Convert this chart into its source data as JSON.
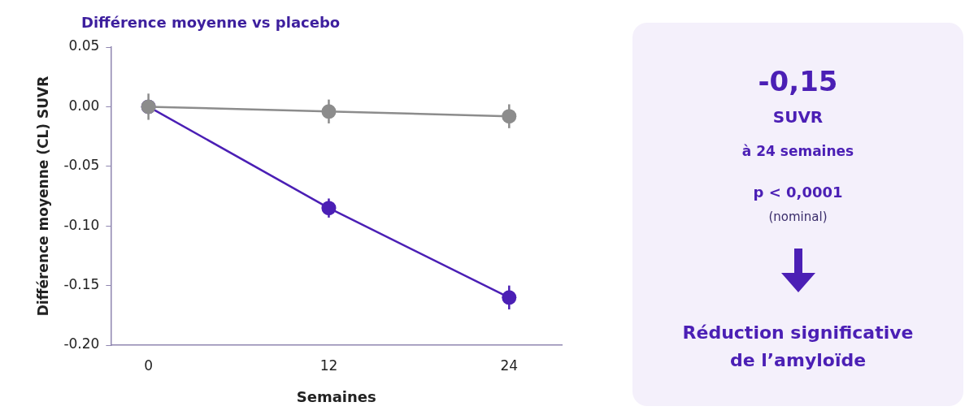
{
  "chart_data": {
    "type": "line",
    "title": "Différence moyenne vs placebo",
    "xlabel": "Semaines",
    "ylabel": "Différence moyenne (CL) SUVR",
    "x": [
      0,
      12,
      24
    ],
    "xlim": [
      -2.5,
      27.5
    ],
    "xticks": [
      0,
      12,
      24
    ],
    "ylim": [
      -0.2,
      0.05
    ],
    "yticks": [
      {
        "value": 0.05,
        "label": "0.05"
      },
      {
        "value": 0,
        "label": "0.00"
      },
      {
        "value": -0.05,
        "label": "-0.05"
      },
      {
        "value": -0.1,
        "label": "-0.10"
      },
      {
        "value": -0.15,
        "label": "-0.15"
      },
      {
        "value": -0.2,
        "label": "-0.20"
      }
    ],
    "series": [
      {
        "color": "#8c8c8c",
        "values": [
          0,
          -0.004,
          -0.008
        ],
        "errors": [
          0.011,
          0.01,
          0.01
        ]
      },
      {
        "color": "#4b1fb5",
        "values": [
          0,
          -0.085,
          -0.16
        ],
        "errors": [
          null,
          0.008,
          0.01
        ]
      }
    ],
    "marker": "circle",
    "line_style": "solid",
    "grid": false,
    "legend": false,
    "annotations": [
      "-0,15",
      "SUVR",
      "à 24 semaines",
      "p < 0,0001",
      "(nominal)",
      "Réduction significative de l’amyloïde"
    ]
  }
}
